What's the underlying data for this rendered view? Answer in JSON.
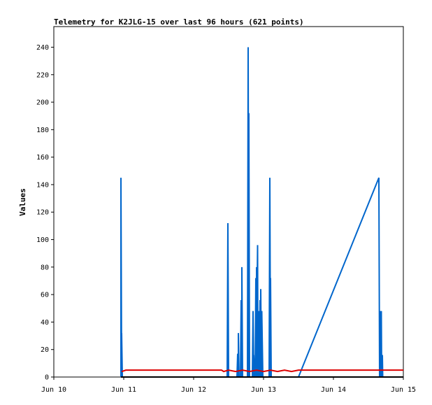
{
  "chart_data": {
    "type": "line",
    "title": "Telemetry for K2JLG-15 over last 96 hours (621 points)",
    "ylabel": "Values",
    "xlabel": "",
    "ylim": [
      0,
      255
    ],
    "xlim": [
      0,
      5
    ],
    "yticks": [
      0,
      20,
      40,
      60,
      80,
      100,
      120,
      140,
      160,
      180,
      200,
      220,
      240
    ],
    "xticks": [
      {
        "x": 0,
        "label": "Jun 10"
      },
      {
        "x": 1,
        "label": "Jun 11"
      },
      {
        "x": 2,
        "label": "Jun 12"
      },
      {
        "x": 3,
        "label": "Jun 13"
      },
      {
        "x": 4,
        "label": "Jun 14"
      },
      {
        "x": 5,
        "label": "Jun 15"
      }
    ],
    "grid": false,
    "legend": "none",
    "series": [
      {
        "color": "#0066cc",
        "points": [
          [
            0.96,
            0
          ],
          [
            0.96,
            145
          ],
          [
            0.97,
            0
          ],
          [
            0.97,
            32
          ],
          [
            0.98,
            0
          ],
          [
            1.0,
            0
          ],
          [
            2.48,
            0
          ],
          [
            2.49,
            112
          ],
          [
            2.5,
            0
          ],
          [
            2.62,
            0
          ],
          [
            2.63,
            17
          ],
          [
            2.64,
            0
          ],
          [
            2.64,
            32
          ],
          [
            2.65,
            0
          ],
          [
            2.67,
            0
          ],
          [
            2.68,
            56
          ],
          [
            2.69,
            0
          ],
          [
            2.69,
            80
          ],
          [
            2.7,
            0
          ],
          [
            2.77,
            0
          ],
          [
            2.78,
            240
          ],
          [
            2.79,
            0
          ],
          [
            2.79,
            192
          ],
          [
            2.8,
            0
          ],
          [
            2.84,
            0
          ],
          [
            2.85,
            48
          ],
          [
            2.86,
            0
          ],
          [
            2.86,
            16
          ],
          [
            2.87,
            0
          ],
          [
            2.88,
            0
          ],
          [
            2.89,
            72
          ],
          [
            2.9,
            0
          ],
          [
            2.9,
            80
          ],
          [
            2.905,
            48
          ],
          [
            2.915,
            96
          ],
          [
            2.92,
            0
          ],
          [
            2.925,
            48
          ],
          [
            2.93,
            0
          ],
          [
            2.935,
            48
          ],
          [
            2.94,
            0
          ],
          [
            2.95,
            56
          ],
          [
            2.955,
            0
          ],
          [
            2.96,
            64
          ],
          [
            2.97,
            0
          ],
          [
            2.975,
            48
          ],
          [
            2.99,
            0
          ],
          [
            3.08,
            0
          ],
          [
            3.09,
            145
          ],
          [
            3.1,
            0
          ],
          [
            3.1,
            72
          ],
          [
            3.11,
            0
          ],
          [
            3.5,
            0
          ],
          [
            4.65,
            145
          ],
          [
            4.66,
            0
          ],
          [
            4.67,
            48
          ],
          [
            4.68,
            0
          ],
          [
            4.685,
            48
          ],
          [
            4.69,
            0
          ],
          [
            4.7,
            16
          ],
          [
            4.705,
            0
          ],
          [
            5.0,
            0
          ]
        ]
      },
      {
        "color": "#dd0000",
        "points": [
          [
            0.97,
            4
          ],
          [
            1.03,
            5
          ],
          [
            2.4,
            5
          ],
          [
            2.43,
            4
          ],
          [
            2.5,
            5
          ],
          [
            2.6,
            4
          ],
          [
            2.7,
            5
          ],
          [
            2.8,
            4
          ],
          [
            2.9,
            5
          ],
          [
            3.0,
            4
          ],
          [
            3.1,
            5
          ],
          [
            3.2,
            4
          ],
          [
            3.3,
            5
          ],
          [
            3.4,
            4
          ],
          [
            3.5,
            5
          ],
          [
            5.0,
            5
          ]
        ]
      },
      {
        "color": "#000000",
        "points": [
          [
            0.96,
            0
          ],
          [
            5.0,
            0
          ]
        ]
      }
    ]
  }
}
